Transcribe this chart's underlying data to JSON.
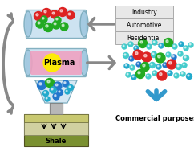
{
  "plasma_text": "Plasma",
  "shale_text": "Shale",
  "commercial_text": "Commercial purposes",
  "industry_labels": [
    "Industry",
    "Automotive",
    "Residential"
  ],
  "reactor_color": "#c8e0f0",
  "reactor_edge": "#7aaabb",
  "plasma_box_color": "#f0a0c0",
  "plasma_glow_color": "#ffee00",
  "shale_top_color": "#7a9030",
  "shale_bottom_color": "#a8a870",
  "shale_mid_color": "#d0d0a0",
  "arrow_color": "#888888",
  "label_box_color": "#e8e8e8",
  "label_box_edge": "#aaaaaa",
  "red_ball": "#dd2222",
  "green_ball": "#22aa22",
  "blue_ball": "#2277cc",
  "teal_ball": "#22aacc",
  "cyan_ball": "#44cccc",
  "figsize": [
    2.42,
    1.89
  ],
  "dpi": 100
}
